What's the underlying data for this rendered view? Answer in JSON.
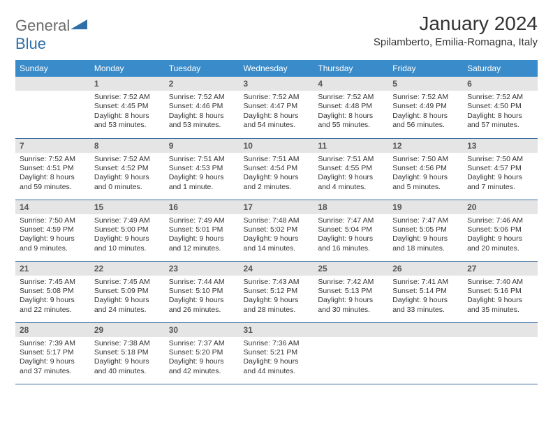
{
  "brand": {
    "word1": "General",
    "word2": "Blue"
  },
  "title": "January 2024",
  "location": "Spilamberto, Emilia-Romagna, Italy",
  "colors": {
    "header_bg": "#3a8bc9",
    "header_fg": "#ffffff",
    "daynum_bg": "#e5e5e5",
    "rule": "#3a6fa0",
    "logo_gray": "#6a6a6a",
    "logo_blue": "#2f6fa8"
  },
  "weekdays": [
    "Sunday",
    "Monday",
    "Tuesday",
    "Wednesday",
    "Thursday",
    "Friday",
    "Saturday"
  ],
  "weeks": [
    [
      null,
      {
        "n": "1",
        "sr": "Sunrise: 7:52 AM",
        "ss": "Sunset: 4:45 PM",
        "dl": "Daylight: 8 hours and 53 minutes."
      },
      {
        "n": "2",
        "sr": "Sunrise: 7:52 AM",
        "ss": "Sunset: 4:46 PM",
        "dl": "Daylight: 8 hours and 53 minutes."
      },
      {
        "n": "3",
        "sr": "Sunrise: 7:52 AM",
        "ss": "Sunset: 4:47 PM",
        "dl": "Daylight: 8 hours and 54 minutes."
      },
      {
        "n": "4",
        "sr": "Sunrise: 7:52 AM",
        "ss": "Sunset: 4:48 PM",
        "dl": "Daylight: 8 hours and 55 minutes."
      },
      {
        "n": "5",
        "sr": "Sunrise: 7:52 AM",
        "ss": "Sunset: 4:49 PM",
        "dl": "Daylight: 8 hours and 56 minutes."
      },
      {
        "n": "6",
        "sr": "Sunrise: 7:52 AM",
        "ss": "Sunset: 4:50 PM",
        "dl": "Daylight: 8 hours and 57 minutes."
      }
    ],
    [
      {
        "n": "7",
        "sr": "Sunrise: 7:52 AM",
        "ss": "Sunset: 4:51 PM",
        "dl": "Daylight: 8 hours and 59 minutes."
      },
      {
        "n": "8",
        "sr": "Sunrise: 7:52 AM",
        "ss": "Sunset: 4:52 PM",
        "dl": "Daylight: 9 hours and 0 minutes."
      },
      {
        "n": "9",
        "sr": "Sunrise: 7:51 AM",
        "ss": "Sunset: 4:53 PM",
        "dl": "Daylight: 9 hours and 1 minute."
      },
      {
        "n": "10",
        "sr": "Sunrise: 7:51 AM",
        "ss": "Sunset: 4:54 PM",
        "dl": "Daylight: 9 hours and 2 minutes."
      },
      {
        "n": "11",
        "sr": "Sunrise: 7:51 AM",
        "ss": "Sunset: 4:55 PM",
        "dl": "Daylight: 9 hours and 4 minutes."
      },
      {
        "n": "12",
        "sr": "Sunrise: 7:50 AM",
        "ss": "Sunset: 4:56 PM",
        "dl": "Daylight: 9 hours and 5 minutes."
      },
      {
        "n": "13",
        "sr": "Sunrise: 7:50 AM",
        "ss": "Sunset: 4:57 PM",
        "dl": "Daylight: 9 hours and 7 minutes."
      }
    ],
    [
      {
        "n": "14",
        "sr": "Sunrise: 7:50 AM",
        "ss": "Sunset: 4:59 PM",
        "dl": "Daylight: 9 hours and 9 minutes."
      },
      {
        "n": "15",
        "sr": "Sunrise: 7:49 AM",
        "ss": "Sunset: 5:00 PM",
        "dl": "Daylight: 9 hours and 10 minutes."
      },
      {
        "n": "16",
        "sr": "Sunrise: 7:49 AM",
        "ss": "Sunset: 5:01 PM",
        "dl": "Daylight: 9 hours and 12 minutes."
      },
      {
        "n": "17",
        "sr": "Sunrise: 7:48 AM",
        "ss": "Sunset: 5:02 PM",
        "dl": "Daylight: 9 hours and 14 minutes."
      },
      {
        "n": "18",
        "sr": "Sunrise: 7:47 AM",
        "ss": "Sunset: 5:04 PM",
        "dl": "Daylight: 9 hours and 16 minutes."
      },
      {
        "n": "19",
        "sr": "Sunrise: 7:47 AM",
        "ss": "Sunset: 5:05 PM",
        "dl": "Daylight: 9 hours and 18 minutes."
      },
      {
        "n": "20",
        "sr": "Sunrise: 7:46 AM",
        "ss": "Sunset: 5:06 PM",
        "dl": "Daylight: 9 hours and 20 minutes."
      }
    ],
    [
      {
        "n": "21",
        "sr": "Sunrise: 7:45 AM",
        "ss": "Sunset: 5:08 PM",
        "dl": "Daylight: 9 hours and 22 minutes."
      },
      {
        "n": "22",
        "sr": "Sunrise: 7:45 AM",
        "ss": "Sunset: 5:09 PM",
        "dl": "Daylight: 9 hours and 24 minutes."
      },
      {
        "n": "23",
        "sr": "Sunrise: 7:44 AM",
        "ss": "Sunset: 5:10 PM",
        "dl": "Daylight: 9 hours and 26 minutes."
      },
      {
        "n": "24",
        "sr": "Sunrise: 7:43 AM",
        "ss": "Sunset: 5:12 PM",
        "dl": "Daylight: 9 hours and 28 minutes."
      },
      {
        "n": "25",
        "sr": "Sunrise: 7:42 AM",
        "ss": "Sunset: 5:13 PM",
        "dl": "Daylight: 9 hours and 30 minutes."
      },
      {
        "n": "26",
        "sr": "Sunrise: 7:41 AM",
        "ss": "Sunset: 5:14 PM",
        "dl": "Daylight: 9 hours and 33 minutes."
      },
      {
        "n": "27",
        "sr": "Sunrise: 7:40 AM",
        "ss": "Sunset: 5:16 PM",
        "dl": "Daylight: 9 hours and 35 minutes."
      }
    ],
    [
      {
        "n": "28",
        "sr": "Sunrise: 7:39 AM",
        "ss": "Sunset: 5:17 PM",
        "dl": "Daylight: 9 hours and 37 minutes."
      },
      {
        "n": "29",
        "sr": "Sunrise: 7:38 AM",
        "ss": "Sunset: 5:18 PM",
        "dl": "Daylight: 9 hours and 40 minutes."
      },
      {
        "n": "30",
        "sr": "Sunrise: 7:37 AM",
        "ss": "Sunset: 5:20 PM",
        "dl": "Daylight: 9 hours and 42 minutes."
      },
      {
        "n": "31",
        "sr": "Sunrise: 7:36 AM",
        "ss": "Sunset: 5:21 PM",
        "dl": "Daylight: 9 hours and 44 minutes."
      },
      null,
      null,
      null
    ]
  ]
}
